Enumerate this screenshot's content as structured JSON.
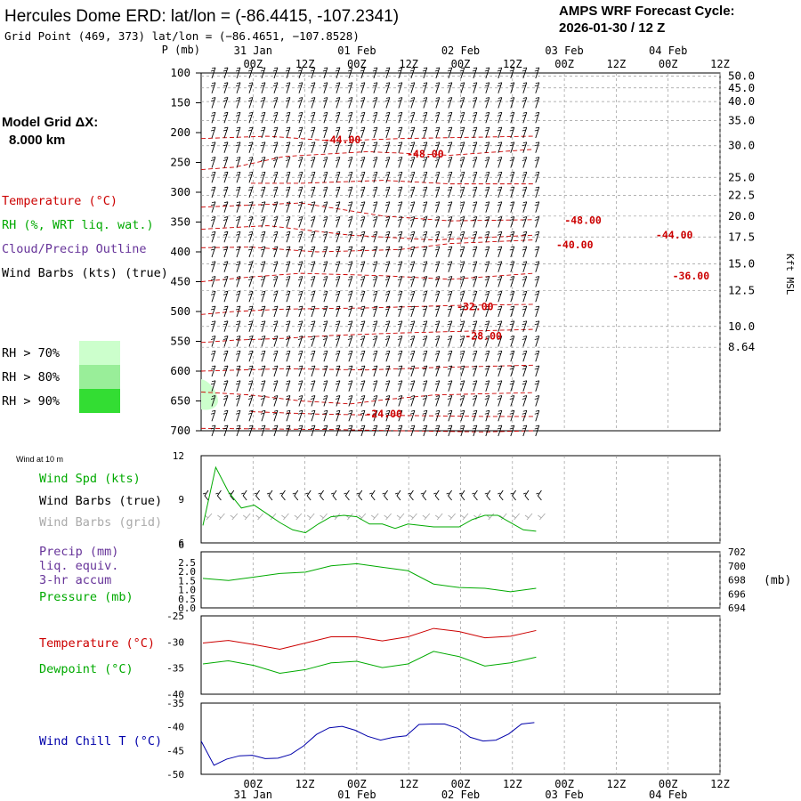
{
  "header": {
    "title": "Hercules Dome ERD:  lat/lon = (-86.4415, -107.2341)",
    "subtitle": "Grid Point (469, 373) lat/lon = (−86.4651, −107.8528)",
    "cycle_line1": "AMPS WRF Forecast Cycle:",
    "cycle_line2": "2026-01-30 / 12  Z"
  },
  "model_grid": {
    "line1": "Model Grid ΔX:",
    "line2": "8.000 km"
  },
  "legend": {
    "temperature": "Temperature (°C)",
    "rh": "RH (%, WRT liq. wat.)",
    "cloud": "Cloud/Precip Outline",
    "wind_barbs": "Wind Barbs (kts) (true)",
    "rh70": "RH > 70%",
    "rh80": "RH > 80%",
    "rh90": "RH > 90%",
    "rh_colors": [
      "#ccffcc",
      "#99ee99",
      "#33dd33"
    ]
  },
  "time_axis": {
    "dates": [
      "31 Jan",
      "01 Feb",
      "02 Feb",
      "03 Feb",
      "04 Feb"
    ],
    "hours": [
      "00Z",
      "12Z",
      "00Z",
      "12Z",
      "00Z",
      "12Z",
      "00Z",
      "12Z",
      "00Z",
      "12Z"
    ]
  },
  "colors": {
    "temperature": "#cc0000",
    "green": "#00aa00",
    "blue": "#0000aa",
    "purple": "#663399",
    "grid_barbs": "#aaaaaa"
  },
  "chart_data": [
    {
      "type": "line",
      "panel": "cross_section",
      "y_label": "P (mb)",
      "y_right_label": "Kft MSL",
      "pressure_ticks": [
        "100",
        "150",
        "200",
        "250",
        "300",
        "350",
        "400",
        "450",
        "500",
        "550",
        "600",
        "650",
        "700"
      ],
      "height_ticks": [
        {
          "label": "50.0",
          "p": 105
        },
        {
          "label": "45.0",
          "p": 125
        },
        {
          "label": "40.0",
          "p": 148
        },
        {
          "label": "35.0",
          "p": 180
        },
        {
          "label": "30.0",
          "p": 222
        },
        {
          "label": "25.0",
          "p": 275
        },
        {
          "label": "22.5",
          "p": 305
        },
        {
          "label": "20.0",
          "p": 340
        },
        {
          "label": "17.5",
          "p": 375
        },
        {
          "label": "15.0",
          "p": 420
        },
        {
          "label": "12.5",
          "p": 465
        },
        {
          "label": "10.0",
          "p": 525
        },
        {
          "label": "8.64",
          "p": 560
        }
      ],
      "temperature_labels": [
        {
          "text": "-44.00",
          "t": 17,
          "p": 212
        },
        {
          "text": "-48.00",
          "t": 27,
          "p": 236
        },
        {
          "text": "-48.00",
          "t": 46,
          "p": 347
        },
        {
          "text": "-44.00",
          "t": 57,
          "p": 372
        },
        {
          "text": "-40.00",
          "t": 45,
          "p": 388
        },
        {
          "text": "-36.00",
          "t": 59,
          "p": 440
        },
        {
          "text": "-32.00",
          "t": 33,
          "p": 492
        },
        {
          "text": "-28.00",
          "t": 34,
          "p": 541
        },
        {
          "text": "-24.00",
          "t": 22,
          "p": 672
        }
      ]
    },
    {
      "type": "line",
      "panel": "wind_10m",
      "title": "Wind at 10 m",
      "series": [
        {
          "name": "Wind Spd (kts)"
        }
      ],
      "series_labels": [
        "Wind Spd (kts)",
        "Wind Barbs (true)",
        "Wind Barbs (grid)"
      ],
      "ylim": [
        6,
        12
      ],
      "y_ticks": [
        "12",
        "9",
        "6"
      ],
      "x": [
        0,
        1,
        2,
        3,
        4,
        5,
        6,
        7,
        8,
        9,
        10,
        11,
        12,
        13,
        14,
        15,
        16,
        17,
        18,
        19,
        20,
        21,
        22,
        23,
        24,
        25,
        26
      ],
      "values": [
        7.2,
        11.2,
        9.5,
        8.4,
        8.6,
        8.0,
        7.4,
        6.9,
        6.7,
        7.3,
        7.8,
        7.9,
        7.8,
        7.3,
        7.3,
        7.0,
        7.3,
        7.2,
        7.1,
        7.1,
        7.1,
        7.6,
        7.9,
        7.9,
        7.4,
        6.9,
        6.8
      ]
    },
    {
      "type": "line",
      "panel": "precip_pressure",
      "series": [
        {
          "name": "Pressure (mb)"
        }
      ],
      "series_labels": [
        "Precip (mm)",
        "liq. equiv.",
        "3-hr accum",
        "Pressure (mb)"
      ],
      "left_ticks": [
        "2.5",
        "2.0",
        "1.5",
        "1.0",
        "0.5",
        "0.0"
      ],
      "right_ticks": [
        "702",
        "700",
        "698",
        "696",
        "694"
      ],
      "right_unit": "(mb)",
      "ylim": [
        694,
        702
      ],
      "x": [
        0,
        2,
        4,
        6,
        8,
        10,
        12,
        14,
        16,
        18,
        20,
        22,
        24,
        26
      ],
      "values": [
        698.2,
        697.9,
        698.4,
        698.9,
        699.1,
        700.0,
        700.3,
        699.8,
        699.3,
        697.4,
        696.9,
        696.8,
        696.3,
        696.8
      ]
    },
    {
      "type": "line",
      "panel": "temperature_dewpoint",
      "series": [
        {
          "name": "Temperature (°C)"
        },
        {
          "name": "Dewpoint (°C)"
        }
      ],
      "ylim": [
        -40,
        -25
      ],
      "y_ticks": [
        "-25",
        "-30",
        "-35",
        "-40"
      ],
      "x": [
        0,
        2,
        4,
        6,
        8,
        10,
        12,
        14,
        16,
        18,
        20,
        22,
        24,
        26
      ],
      "temperature": [
        -30.2,
        -29.7,
        -30.5,
        -31.4,
        -30.2,
        -29.0,
        -29.0,
        -29.8,
        -29.0,
        -27.4,
        -28.0,
        -29.2,
        -28.9,
        -27.8
      ],
      "dewpoint": [
        -34.2,
        -33.6,
        -34.5,
        -36.0,
        -35.3,
        -34.0,
        -33.7,
        -34.9,
        -34.2,
        -31.8,
        -32.8,
        -34.6,
        -34.0,
        -32.9
      ]
    },
    {
      "type": "line",
      "panel": "wind_chill",
      "series": [
        {
          "name": "Wind Chill T (°C)"
        }
      ],
      "ylim": [
        -50,
        -35
      ],
      "y_ticks": [
        "-35",
        "-40",
        "-45",
        "-50"
      ],
      "x": [
        0,
        1,
        2,
        3,
        4,
        5,
        6,
        7,
        8,
        9,
        10,
        11,
        12,
        13,
        14,
        15,
        16,
        17,
        18,
        19,
        20,
        21,
        22,
        23,
        24,
        25,
        26
      ],
      "values": [
        -43.0,
        -48.1,
        -46.8,
        -46.1,
        -46.0,
        -46.7,
        -46.6,
        -45.8,
        -44.0,
        -41.6,
        -40.2,
        -39.9,
        -40.7,
        -42.0,
        -42.8,
        -42.2,
        -41.9,
        -39.5,
        -39.4,
        -39.4,
        -40.3,
        -42.2,
        -43.0,
        -42.8,
        -41.5,
        -39.4,
        -39.1
      ]
    }
  ]
}
